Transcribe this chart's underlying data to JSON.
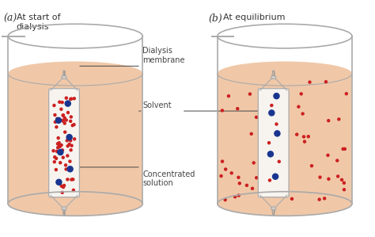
{
  "fig_width": 4.74,
  "fig_height": 2.99,
  "bg_color": "#ffffff",
  "beaker_fill": "#f0c8a8",
  "beaker_stroke": "#aaaaaa",
  "label_a": "(a)",
  "label_b": "(b)",
  "title_a": "At start of\ndialysis",
  "title_b": "At equilibrium",
  "label_membrane": "Dialysis\nmembrane",
  "label_solvent": "Solvent",
  "label_solution": "Concentrated\nsolution",
  "red_color": "#cc2020",
  "blue_color": "#1a3590",
  "tubing_color": "#f7f4f0",
  "tubing_stroke": "#aaaaaa",
  "annotation_color": "#444444",
  "red_small_r": 0.032,
  "blue_large_r": 0.075
}
